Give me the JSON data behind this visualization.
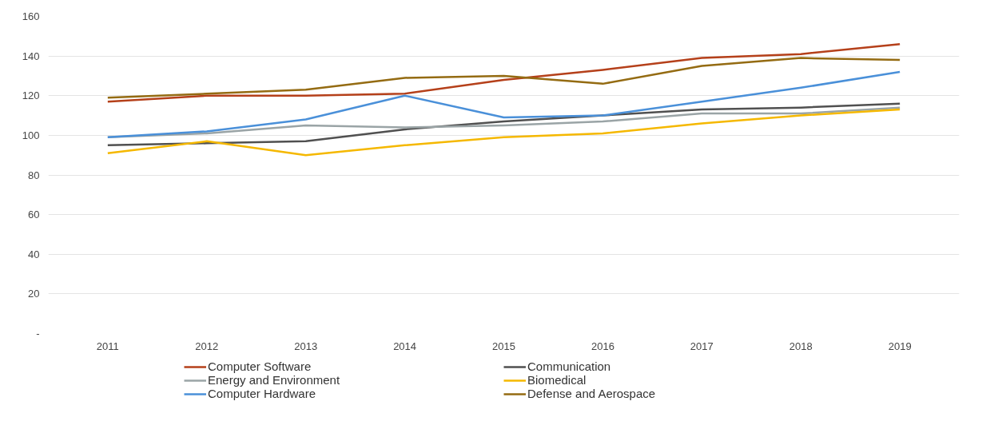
{
  "chart_data": {
    "type": "line",
    "categories": [
      "2011",
      "2012",
      "2013",
      "2014",
      "2015",
      "2016",
      "2017",
      "2018",
      "2019"
    ],
    "series": [
      {
        "name": "Computer Software",
        "color": "#b5401a",
        "values": [
          117,
          120,
          120,
          121,
          128,
          133,
          139,
          141,
          146
        ]
      },
      {
        "name": "Communication",
        "color": "#505050",
        "values": [
          95,
          96,
          97,
          103,
          107,
          110,
          113,
          114,
          116
        ]
      },
      {
        "name": "Energy and Environment",
        "color": "#9aa4a6",
        "values": [
          99,
          101,
          105,
          104,
          105,
          107,
          111,
          111,
          114
        ]
      },
      {
        "name": "Biomedical",
        "color": "#f5b800",
        "values": [
          91,
          97,
          90,
          95,
          99,
          101,
          106,
          110,
          113
        ]
      },
      {
        "name": "Computer Hardware",
        "color": "#4a90d9",
        "values": [
          99,
          102,
          108,
          120,
          109,
          110,
          117,
          124,
          132
        ]
      },
      {
        "name": "Defense and Aerospace",
        "color": "#946b12",
        "values": [
          119,
          121,
          123,
          129,
          130,
          126,
          135,
          139,
          138
        ]
      }
    ],
    "ylim": [
      0,
      160
    ],
    "yticks": [
      {
        "value": 0,
        "label": "-"
      },
      20,
      40,
      60,
      80,
      100,
      120,
      140,
      160
    ],
    "grid": "y",
    "legend": "bottom",
    "marker": "none",
    "line_style": "solid"
  }
}
